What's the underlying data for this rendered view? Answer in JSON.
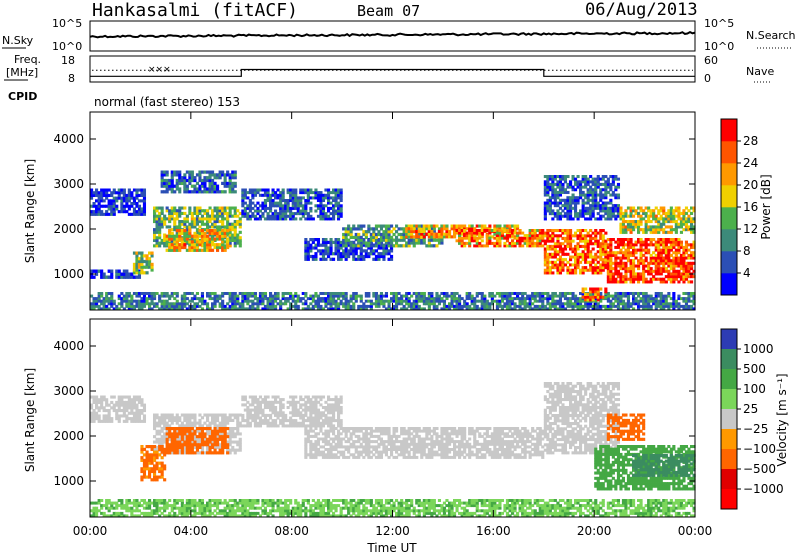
{
  "header": {
    "station": "Hankasalmi (fitACF)",
    "beam": "Beam 07",
    "date": "06/Aug/2013"
  },
  "noise_panel": {
    "left_label": "N.Sky",
    "right_label": "N.Search",
    "left_ticks": [
      "10^5",
      "10^0"
    ],
    "right_ticks": [
      "10^5",
      "10^0"
    ]
  },
  "freq_panel": {
    "left_label_top": "Freq.",
    "left_label_bottom": "[MHz]",
    "left_ticks": [
      "18",
      "8"
    ],
    "right_label": "Nave",
    "right_ticks": [
      "60",
      "0"
    ],
    "freq_steps": [
      {
        "start_hour": 0,
        "end_hour": 6,
        "freq_mhz": 10.2
      },
      {
        "start_hour": 6,
        "end_hour": 18,
        "freq_mhz": 12.8
      },
      {
        "start_hour": 18,
        "end_hour": 24,
        "freq_mhz": 10.2
      }
    ],
    "nave_level": 27
  },
  "cpid": {
    "label": "CPID",
    "program": "normal (fast stereo) 153"
  },
  "chart_data": [
    {
      "type": "heatmap",
      "name": "power",
      "ylabel": "Slant Range [km]",
      "xlabel": "",
      "y_ticks": [
        "1000",
        "2000",
        "3000",
        "4000"
      ],
      "y_values": [
        1000,
        2000,
        3000,
        4000
      ],
      "ylim": [
        200,
        4600
      ],
      "xlim": [
        0,
        24
      ],
      "colorbar": {
        "label": "Power [dB]",
        "ticks": [
          "4",
          "8",
          "12",
          "16",
          "20",
          "24",
          "28"
        ],
        "range": [
          0,
          30
        ],
        "colors": [
          "#0000ff",
          "#2b4fb5",
          "#3c8a7a",
          "#4cb04c",
          "#f0d000",
          "#ff9900",
          "#ff5500",
          "#ff0000"
        ]
      },
      "regions": [
        {
          "t0": 0.0,
          "t1": 24.0,
          "r0": 200,
          "r1": 600,
          "value": 8
        },
        {
          "t0": 0.0,
          "t1": 2.0,
          "r0": 900,
          "r1": 1100,
          "value": 5
        },
        {
          "t0": 0.0,
          "t1": 2.2,
          "r0": 2300,
          "r1": 2900,
          "value": 4
        },
        {
          "t0": 1.7,
          "t1": 2.5,
          "r0": 1000,
          "r1": 1500,
          "value": 14
        },
        {
          "t0": 2.5,
          "t1": 6.0,
          "r0": 1600,
          "r1": 2500,
          "value": 13
        },
        {
          "t0": 3.0,
          "t1": 5.5,
          "r0": 1500,
          "r1": 2000,
          "value": 19
        },
        {
          "t0": 2.8,
          "t1": 5.8,
          "r0": 2800,
          "r1": 3300,
          "value": 7
        },
        {
          "t0": 6.0,
          "t1": 10.0,
          "r0": 2200,
          "r1": 2900,
          "value": 6
        },
        {
          "t0": 8.5,
          "t1": 12.0,
          "r0": 1300,
          "r1": 1800,
          "value": 5
        },
        {
          "t0": 10.0,
          "t1": 14.0,
          "r0": 1600,
          "r1": 2100,
          "value": 11
        },
        {
          "t0": 12.5,
          "t1": 17.0,
          "r0": 1800,
          "r1": 2100,
          "value": 20
        },
        {
          "t0": 14.5,
          "t1": 18.0,
          "r0": 1600,
          "r1": 2000,
          "value": 22
        },
        {
          "t0": 18.0,
          "t1": 20.5,
          "r0": 1000,
          "r1": 2000,
          "value": 24
        },
        {
          "t0": 18.0,
          "t1": 21.0,
          "r0": 2200,
          "r1": 3200,
          "value": 6
        },
        {
          "t0": 20.5,
          "t1": 24.0,
          "r0": 800,
          "r1": 1800,
          "value": 27
        },
        {
          "t0": 21.0,
          "t1": 24.0,
          "r0": 1900,
          "r1": 2500,
          "value": 16
        },
        {
          "t0": 19.5,
          "t1": 20.5,
          "r0": 400,
          "r1": 700,
          "value": 23
        }
      ]
    },
    {
      "type": "heatmap",
      "name": "velocity",
      "ylabel": "Slant Range [km]",
      "xlabel": "Time UT",
      "x_ticks": [
        "00:00",
        "04:00",
        "08:00",
        "12:00",
        "16:00",
        "20:00",
        "00:00"
      ],
      "x_values": [
        0,
        4,
        8,
        12,
        16,
        20,
        24
      ],
      "y_ticks": [
        "1000",
        "2000",
        "3000",
        "4000"
      ],
      "y_values": [
        1000,
        2000,
        3000,
        4000
      ],
      "ylim": [
        200,
        4600
      ],
      "xlim": [
        0,
        24
      ],
      "colorbar": {
        "label": "Velocity [m s⁻¹]",
        "ticks": [
          "1000",
          "500",
          "100",
          "25",
          "−25",
          "−100",
          "−500",
          "−1000"
        ],
        "colors": [
          "#2d3cb4",
          "#3b8c60",
          "#44a844",
          "#7bd65a",
          "#c8c8c8",
          "#ff9900",
          "#ff6600",
          "#e00000",
          "#ff0000"
        ]
      },
      "regions": [
        {
          "t0": 0.0,
          "t1": 24.0,
          "r0": 200,
          "r1": 600,
          "value": 90
        },
        {
          "t0": 0.0,
          "t1": 2.2,
          "r0": 2300,
          "r1": 2900,
          "value": 0
        },
        {
          "t0": 2.5,
          "t1": 6.0,
          "r0": 1600,
          "r1": 2500,
          "value": 0
        },
        {
          "t0": 3.0,
          "t1": 5.5,
          "r0": 1600,
          "r1": 2200,
          "value": -150
        },
        {
          "t0": 2.0,
          "t1": 3.0,
          "r0": 1000,
          "r1": 1800,
          "value": -120
        },
        {
          "t0": 6.0,
          "t1": 10.0,
          "r0": 2200,
          "r1": 2900,
          "value": 0
        },
        {
          "t0": 8.5,
          "t1": 18.0,
          "r0": 1500,
          "r1": 2200,
          "value": 0
        },
        {
          "t0": 18.0,
          "t1": 21.0,
          "r0": 1600,
          "r1": 3200,
          "value": 0
        },
        {
          "t0": 20.0,
          "t1": 24.0,
          "r0": 800,
          "r1": 1800,
          "value": 200
        },
        {
          "t0": 21.5,
          "t1": 24.0,
          "r0": 1100,
          "r1": 1600,
          "value": 700
        },
        {
          "t0": 20.5,
          "t1": 22.0,
          "r0": 1900,
          "r1": 2500,
          "value": -150
        }
      ]
    }
  ]
}
